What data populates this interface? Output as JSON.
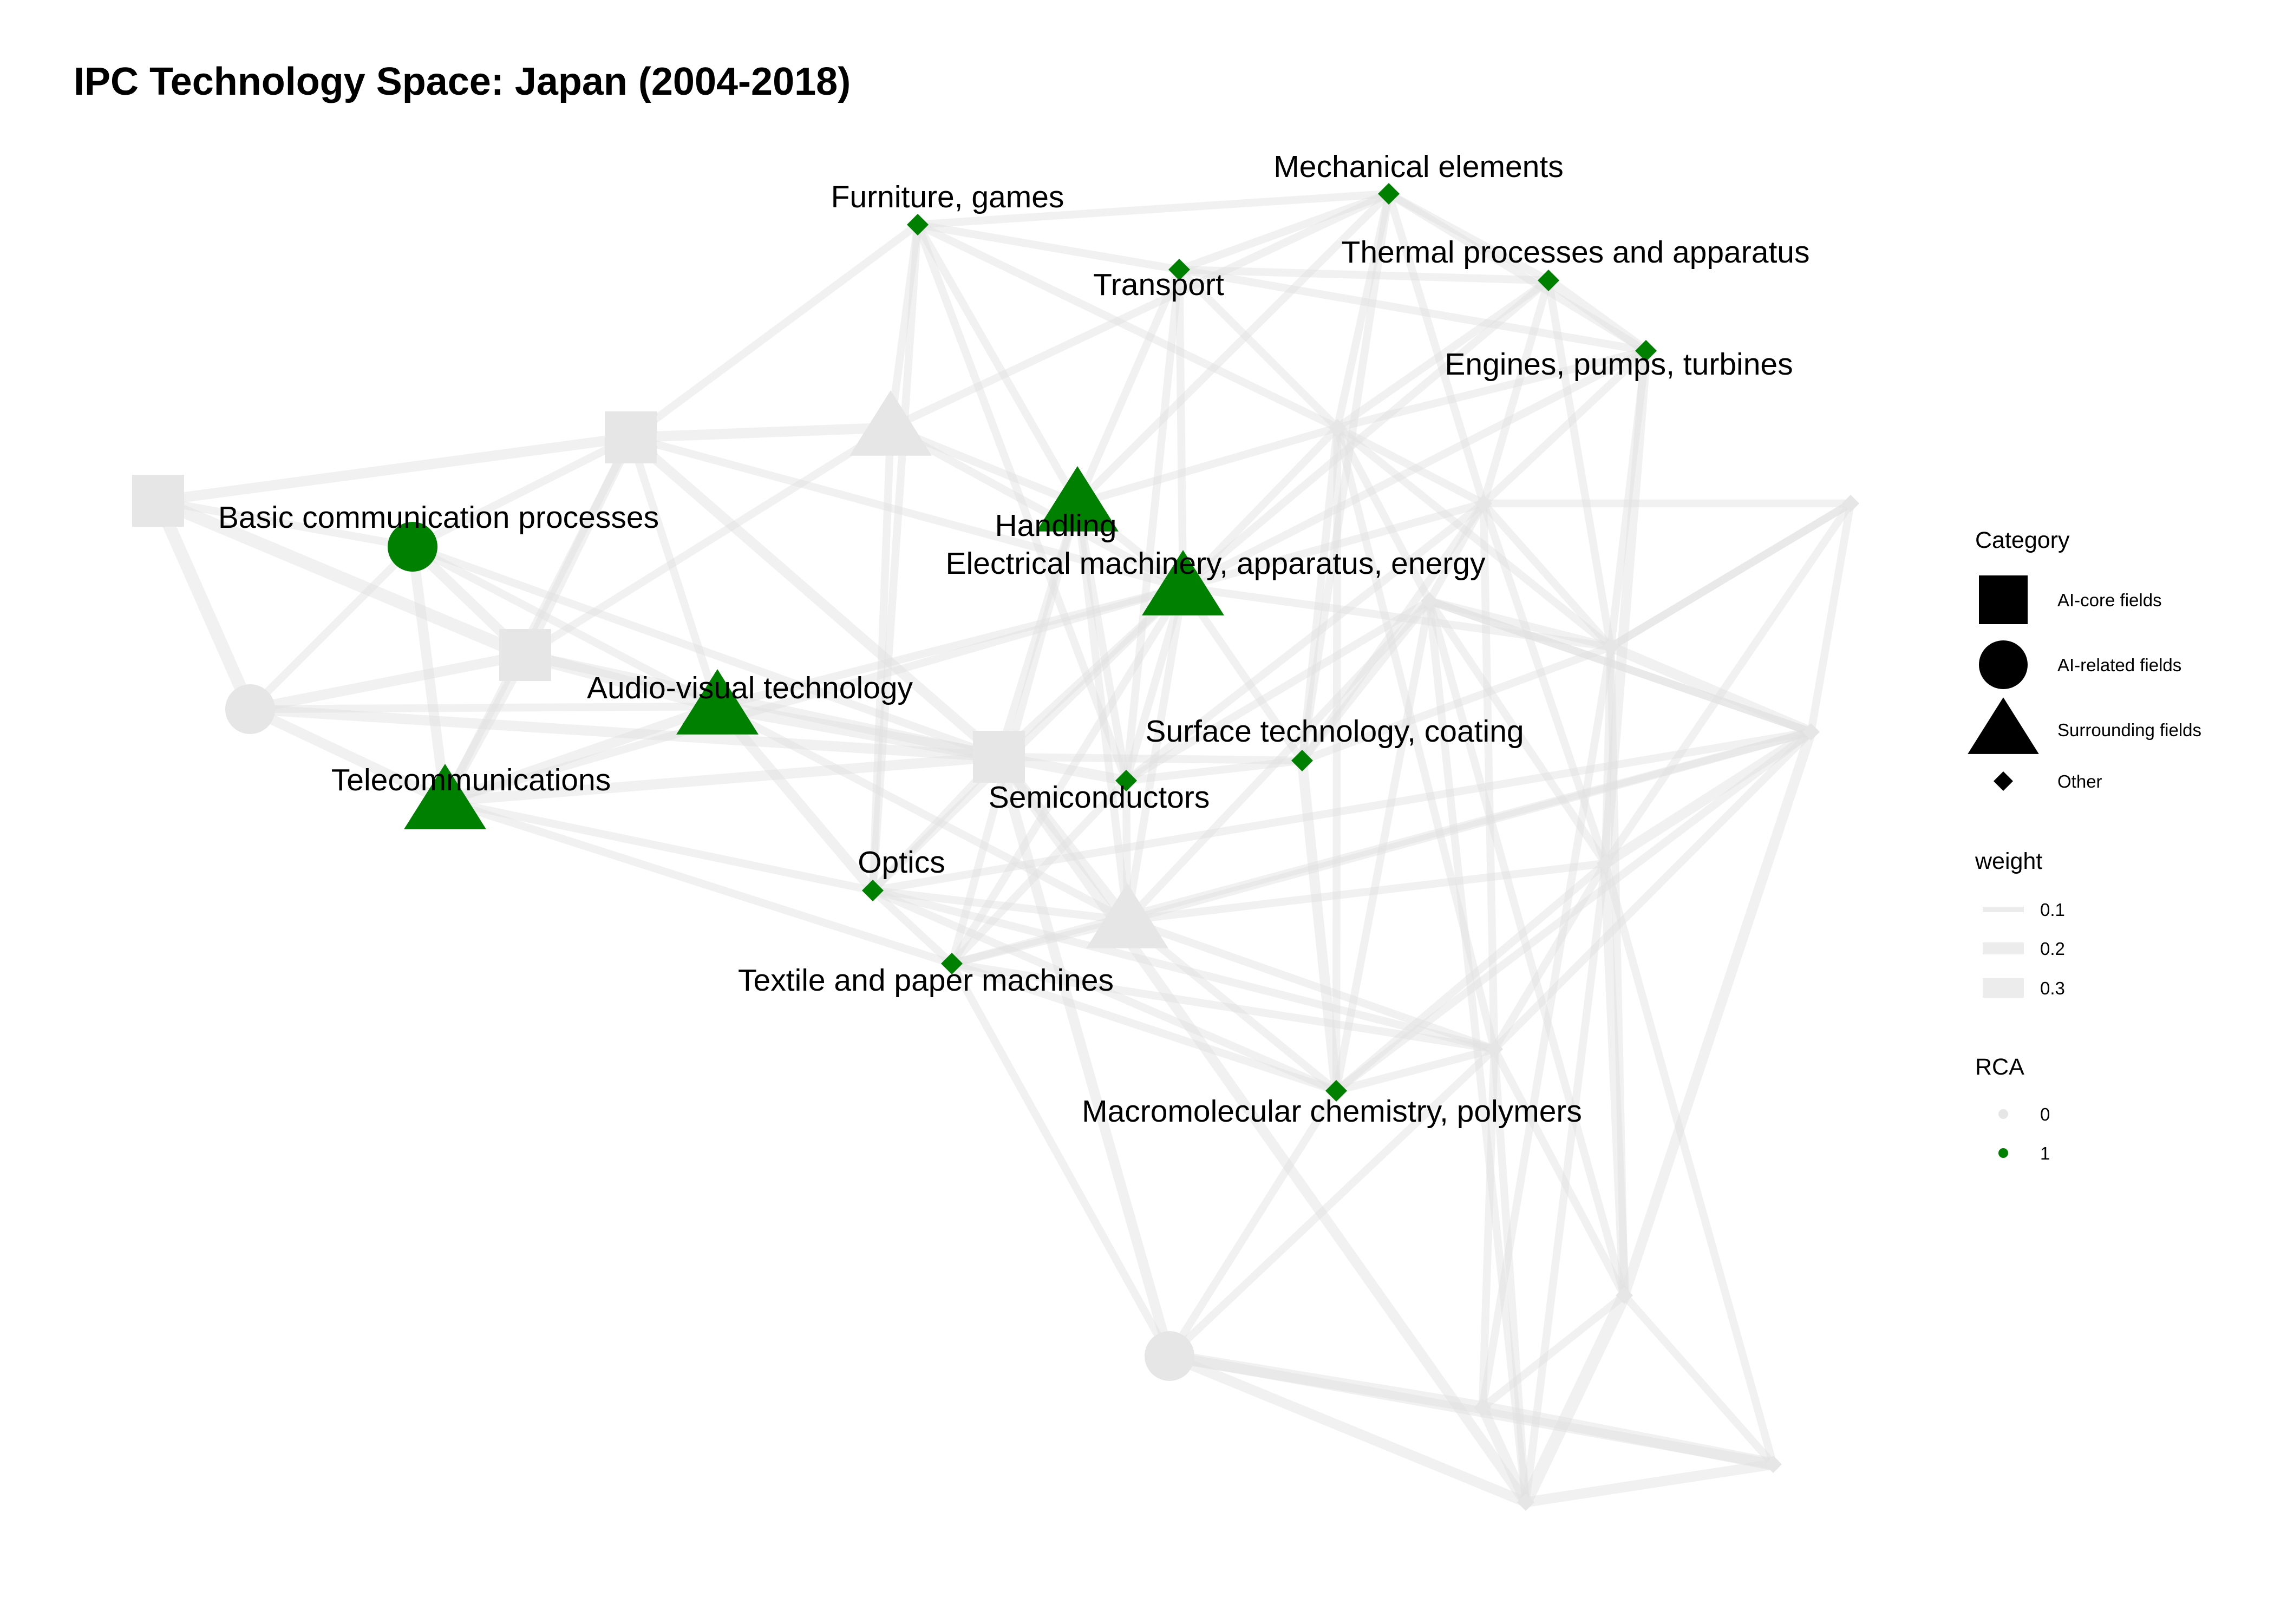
{
  "title": "IPC Technology Space: Japan (2004-2018)",
  "colors": {
    "rca_on": "#008000",
    "rca_off": "#e6e6e6",
    "edge": "#e0e0e0",
    "legend_shape": "#000000"
  },
  "nodes": [
    {
      "id": "n1",
      "shape": "square",
      "rca": 0,
      "label": ""
    },
    {
      "id": "n2",
      "shape": "square",
      "rca": 0,
      "label": ""
    },
    {
      "id": "n3",
      "shape": "square",
      "rca": 0,
      "label": ""
    },
    {
      "id": "n4",
      "shape": "square",
      "rca": 0,
      "label": ""
    },
    {
      "id": "n5",
      "shape": "circle",
      "rca": 0,
      "label": ""
    },
    {
      "id": "n6",
      "shape": "circle",
      "rca": 1,
      "label": "Basic communication processes"
    },
    {
      "id": "n7",
      "shape": "circle",
      "rca": 0,
      "label": ""
    },
    {
      "id": "n8",
      "shape": "triangle",
      "rca": 0,
      "label": ""
    },
    {
      "id": "n9",
      "shape": "triangle",
      "rca": 1,
      "label": "Handling"
    },
    {
      "id": "n10",
      "shape": "triangle",
      "rca": 1,
      "label": "Electrical machinery, apparatus, energy"
    },
    {
      "id": "n11",
      "shape": "triangle",
      "rca": 1,
      "label": "Audio-visual technology"
    },
    {
      "id": "n12",
      "shape": "triangle",
      "rca": 1,
      "label": "Telecommunications"
    },
    {
      "id": "n13",
      "shape": "triangle",
      "rca": 0,
      "label": ""
    },
    {
      "id": "n14",
      "shape": "diamond",
      "rca": 1,
      "label": "Furniture, games"
    },
    {
      "id": "n15",
      "shape": "diamond",
      "rca": 1,
      "label": "Mechanical elements"
    },
    {
      "id": "n16",
      "shape": "diamond",
      "rca": 1,
      "label": "Transport"
    },
    {
      "id": "n17",
      "shape": "diamond",
      "rca": 1,
      "label": "Thermal processes and apparatus"
    },
    {
      "id": "n18",
      "shape": "diamond",
      "rca": 1,
      "label": "Engines, pumps, turbines"
    },
    {
      "id": "n19",
      "shape": "diamond",
      "rca": 1,
      "label": "Surface technology, coating"
    },
    {
      "id": "n20",
      "shape": "diamond",
      "rca": 1,
      "label": "Semiconductors"
    },
    {
      "id": "n21",
      "shape": "diamond",
      "rca": 1,
      "label": "Optics"
    },
    {
      "id": "n22",
      "shape": "diamond",
      "rca": 1,
      "label": "Textile and paper machines"
    },
    {
      "id": "n23",
      "shape": "diamond",
      "rca": 1,
      "label": "Macromolecular chemistry, polymers"
    },
    {
      "id": "n24",
      "shape": "diamond",
      "rca": 0,
      "label": ""
    },
    {
      "id": "n25",
      "shape": "diamond",
      "rca": 0,
      "label": ""
    },
    {
      "id": "n26",
      "shape": "diamond",
      "rca": 0,
      "label": ""
    },
    {
      "id": "n27",
      "shape": "diamond",
      "rca": 0,
      "label": ""
    },
    {
      "id": "n28",
      "shape": "diamond",
      "rca": 0,
      "label": ""
    },
    {
      "id": "n29",
      "shape": "diamond",
      "rca": 0,
      "label": ""
    },
    {
      "id": "n30",
      "shape": "diamond",
      "rca": 0,
      "label": ""
    },
    {
      "id": "n31",
      "shape": "diamond",
      "rca": 0,
      "label": ""
    },
    {
      "id": "n32",
      "shape": "diamond",
      "rca": 0,
      "label": ""
    },
    {
      "id": "n33",
      "shape": "diamond",
      "rca": 0,
      "label": ""
    },
    {
      "id": "n34",
      "shape": "diamond",
      "rca": 0,
      "label": ""
    },
    {
      "id": "n35",
      "shape": "diamond",
      "rca": 0,
      "label": ""
    }
  ],
  "edges": [
    [
      "n1",
      "n2",
      0.2
    ],
    [
      "n1",
      "n5",
      0.3
    ],
    [
      "n1",
      "n3",
      0.3
    ],
    [
      "n1",
      "n6",
      0.1
    ],
    [
      "n5",
      "n3",
      0.2
    ],
    [
      "n5",
      "n12",
      0.2
    ],
    [
      "n5",
      "n11",
      0.1
    ],
    [
      "n5",
      "n6",
      0.1
    ],
    [
      "n5",
      "n4",
      0.2
    ],
    [
      "n6",
      "n3",
      0.2
    ],
    [
      "n6",
      "n2",
      0.1
    ],
    [
      "n6",
      "n12",
      0.2
    ],
    [
      "n6",
      "n11",
      0.1
    ],
    [
      "n6",
      "n4",
      0.1
    ],
    [
      "n3",
      "n11",
      0.3
    ],
    [
      "n3",
      "n4",
      0.2
    ],
    [
      "n3",
      "n12",
      0.2
    ],
    [
      "n3",
      "n2",
      0.2
    ],
    [
      "n3",
      "n8",
      0.1
    ],
    [
      "n2",
      "n8",
      0.2
    ],
    [
      "n2",
      "n11",
      0.1
    ],
    [
      "n2",
      "n4",
      0.2
    ],
    [
      "n2",
      "n14",
      0.1
    ],
    [
      "n2",
      "n10",
      0.1
    ],
    [
      "n2",
      "n12",
      0.1
    ],
    [
      "n11",
      "n4",
      0.3
    ],
    [
      "n11",
      "n12",
      0.2
    ],
    [
      "n11",
      "n10",
      0.1
    ],
    [
      "n11",
      "n21",
      0.2
    ],
    [
      "n11",
      "n13",
      0.1
    ],
    [
      "n12",
      "n4",
      0.2
    ],
    [
      "n12",
      "n21",
      0.1
    ],
    [
      "n12",
      "n22",
      0.1
    ],
    [
      "n12",
      "n10",
      0.1
    ],
    [
      "n4",
      "n20",
      0.2
    ],
    [
      "n4",
      "n19",
      0.1
    ],
    [
      "n4",
      "n13",
      0.2
    ],
    [
      "n4",
      "n10",
      0.1
    ],
    [
      "n4",
      "n7",
      0.2
    ],
    [
      "n4",
      "n21",
      0.1
    ],
    [
      "n4",
      "n9",
      0.1
    ],
    [
      "n8",
      "n14",
      0.1
    ],
    [
      "n8",
      "n9",
      0.1
    ],
    [
      "n8",
      "n21",
      0.1
    ],
    [
      "n8",
      "n10",
      0.1
    ],
    [
      "n8",
      "n15",
      0.1
    ],
    [
      "n14",
      "n16",
      0.1
    ],
    [
      "n14",
      "n15",
      0.1
    ],
    [
      "n14",
      "n9",
      0.1
    ],
    [
      "n14",
      "n21",
      0.1
    ],
    [
      "n14",
      "n20",
      0.1
    ],
    [
      "n14",
      "n24",
      0.1
    ],
    [
      "n15",
      "n16",
      0.1
    ],
    [
      "n15",
      "n17",
      0.1
    ],
    [
      "n15",
      "n18",
      0.1
    ],
    [
      "n15",
      "n24",
      0.1
    ],
    [
      "n15",
      "n9",
      0.1
    ],
    [
      "n15",
      "n25",
      0.1
    ],
    [
      "n15",
      "n19",
      0.1
    ],
    [
      "n16",
      "n17",
      0.1
    ],
    [
      "n16",
      "n9",
      0.1
    ],
    [
      "n16",
      "n10",
      0.1
    ],
    [
      "n16",
      "n24",
      0.1
    ],
    [
      "n16",
      "n18",
      0.1
    ],
    [
      "n16",
      "n20",
      0.1
    ],
    [
      "n17",
      "n18",
      0.2
    ],
    [
      "n17",
      "n24",
      0.1
    ],
    [
      "n17",
      "n27",
      0.1
    ],
    [
      "n17",
      "n25",
      0.1
    ],
    [
      "n17",
      "n10",
      0.1
    ],
    [
      "n18",
      "n24",
      0.1
    ],
    [
      "n18",
      "n30",
      0.2
    ],
    [
      "n18",
      "n27",
      0.1
    ],
    [
      "n18",
      "n10",
      0.1
    ],
    [
      "n18",
      "n25",
      0.1
    ],
    [
      "n9",
      "n10",
      0.1
    ],
    [
      "n9",
      "n24",
      0.1
    ],
    [
      "n9",
      "n22",
      0.1
    ],
    [
      "n9",
      "n13",
      0.1
    ],
    [
      "n9",
      "n20",
      0.1
    ],
    [
      "n10",
      "n19",
      0.1
    ],
    [
      "n10",
      "n24",
      0.1
    ],
    [
      "n10",
      "n25",
      0.1
    ],
    [
      "n10",
      "n20",
      0.1
    ],
    [
      "n10",
      "n13",
      0.1
    ],
    [
      "n10",
      "n27",
      0.1
    ],
    [
      "n10",
      "n22",
      0.1
    ],
    [
      "n10",
      "n21",
      0.1
    ],
    [
      "n20",
      "n19",
      0.1
    ],
    [
      "n20",
      "n13",
      0.1
    ],
    [
      "n20",
      "n22",
      0.1
    ],
    [
      "n20",
      "n26",
      0.1
    ],
    [
      "n20",
      "n25",
      0.1
    ],
    [
      "n19",
      "n26",
      0.1
    ],
    [
      "n19",
      "n24",
      0.1
    ],
    [
      "n19",
      "n27",
      0.1
    ],
    [
      "n19",
      "n23",
      0.2
    ],
    [
      "n19",
      "n25",
      0.1
    ],
    [
      "n21",
      "n22",
      0.1
    ],
    [
      "n21",
      "n13",
      0.1
    ],
    [
      "n21",
      "n29",
      0.1
    ],
    [
      "n21",
      "n31",
      0.1
    ],
    [
      "n21",
      "n23",
      0.1
    ],
    [
      "n22",
      "n13",
      0.1
    ],
    [
      "n22",
      "n29",
      0.1
    ],
    [
      "n22",
      "n23",
      0.1
    ],
    [
      "n22",
      "n31",
      0.1
    ],
    [
      "n22",
      "n7",
      0.1
    ],
    [
      "n13",
      "n30",
      0.1
    ],
    [
      "n13",
      "n26",
      0.1
    ],
    [
      "n13",
      "n29",
      0.1
    ],
    [
      "n13",
      "n23",
      0.1
    ],
    [
      "n13",
      "n31",
      0.1
    ],
    [
      "n23",
      "n29",
      0.1
    ],
    [
      "n23",
      "n26",
      0.1
    ],
    [
      "n23",
      "n30",
      0.1
    ],
    [
      "n23",
      "n31",
      0.1
    ],
    [
      "n23",
      "n7",
      0.1
    ],
    [
      "n24",
      "n25",
      0.1
    ],
    [
      "n24",
      "n26",
      0.1
    ],
    [
      "n24",
      "n27",
      0.1
    ],
    [
      "n24",
      "n23",
      0.1
    ],
    [
      "n25",
      "n27",
      0.1
    ],
    [
      "n25",
      "n26",
      0.1
    ],
    [
      "n25",
      "n28",
      0.1
    ],
    [
      "n25",
      "n30",
      0.1
    ],
    [
      "n26",
      "n30",
      0.1
    ],
    [
      "n26",
      "n29",
      0.1
    ],
    [
      "n26",
      "n27",
      0.1
    ],
    [
      "n26",
      "n32",
      0.1
    ],
    [
      "n26",
      "n34",
      0.1
    ],
    [
      "n27",
      "n30",
      0.1
    ],
    [
      "n27",
      "n28",
      0.1
    ],
    [
      "n27",
      "n29",
      0.2
    ],
    [
      "n27",
      "n32",
      0.1
    ],
    [
      "n27",
      "n33",
      0.1
    ],
    [
      "n28",
      "n29",
      0.1
    ],
    [
      "n28",
      "n30",
      0.1
    ],
    [
      "n28",
      "n27",
      0.1
    ],
    [
      "n29",
      "n30",
      0.2
    ],
    [
      "n29",
      "n32",
      0.2
    ],
    [
      "n29",
      "n31",
      0.1
    ],
    [
      "n29",
      "n26",
      0.1
    ],
    [
      "n30",
      "n32",
      0.2
    ],
    [
      "n30",
      "n34",
      0.1
    ],
    [
      "n30",
      "n35",
      0.1
    ],
    [
      "n30",
      "n31",
      0.1
    ],
    [
      "n31",
      "n32",
      0.1
    ],
    [
      "n31",
      "n33",
      0.1
    ],
    [
      "n31",
      "n7",
      0.1
    ],
    [
      "n31",
      "n34",
      0.1
    ],
    [
      "n32",
      "n34",
      0.3
    ],
    [
      "n32",
      "n33",
      0.1
    ],
    [
      "n32",
      "n35",
      0.1
    ],
    [
      "n7",
      "n33",
      0.3
    ],
    [
      "n7",
      "n34",
      0.2
    ],
    [
      "n7",
      "n35",
      0.2
    ],
    [
      "n33",
      "n34",
      0.2
    ],
    [
      "n33",
      "n35",
      0.3
    ],
    [
      "n34",
      "n35",
      0.2
    ],
    [
      "n4",
      "n34",
      0.2
    ],
    [
      "n24",
      "n31",
      0.1
    ],
    [
      "n25",
      "n31",
      0.1
    ]
  ],
  "legend": {
    "category_title": "Category",
    "category_items": [
      {
        "shape": "square",
        "label": "AI-core fields"
      },
      {
        "shape": "circle",
        "label": "AI-related fields"
      },
      {
        "shape": "triangle",
        "label": "Surrounding fields"
      },
      {
        "shape": "diamond",
        "label": "Other"
      }
    ],
    "weight_title": "weight",
    "weight_items": [
      "0.1",
      "0.2",
      "0.3"
    ],
    "rca_title": "RCA",
    "rca_items": [
      {
        "value": "0",
        "color": "#e6e6e6"
      },
      {
        "value": "1",
        "color": "#008000"
      }
    ]
  }
}
